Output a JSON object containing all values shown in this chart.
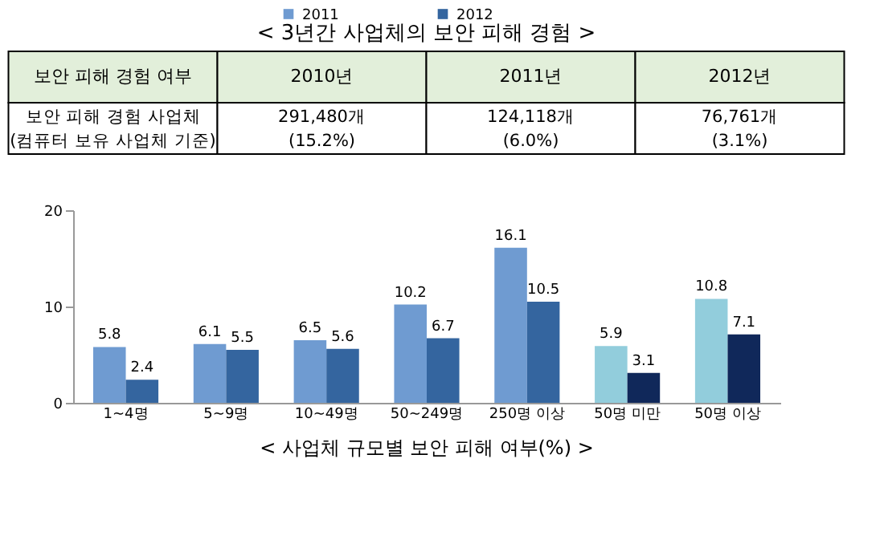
{
  "chart_data": [
    {
      "type": "other",
      "title": "< 3년간 사업체의 보안 피해 경험 >",
      "categories": [
        "보안 피해 경험 여부",
        "2010년",
        "2011년",
        "2012년"
      ],
      "cell_labels": [
        [
          "보안 피해 경험 사업체\n(컴퓨터 보유 사업체 기준)",
          "291,480개\n(15.2%)",
          "124,118개\n(6.0%)",
          "76,761개\n(3.1%)"
        ]
      ]
    },
    {
      "type": "bar",
      "title": "< 사업체 규모별 보안 피해 여부(%) >",
      "categories": [
        "1~4명",
        "5~9명",
        "10~49명",
        "50~249명",
        "250명 이상",
        "50명 미만",
        "50명 이상"
      ],
      "series": [
        {
          "name": "2011",
          "color": "#6f9bd1",
          "colors": [
            "#6f9bd1",
            "#6f9bd1",
            "#6f9bd1",
            "#6f9bd1",
            "#6f9bd1",
            "#92cddc",
            "#92cddc"
          ],
          "values": [
            5.8,
            6.1,
            6.5,
            10.2,
            16.1,
            5.9,
            10.8
          ]
        },
        {
          "name": "2012",
          "color": "#34659f",
          "colors": [
            "#34659f",
            "#34659f",
            "#34659f",
            "#34659f",
            "#34659f",
            "#10285a",
            "#10285a"
          ],
          "values": [
            2.4,
            5.5,
            5.6,
            6.7,
            10.5,
            3.1,
            7.1
          ]
        }
      ],
      "ylim": [
        0,
        20
      ],
      "yticks": [
        0,
        10,
        20
      ],
      "data_labels": true,
      "grid": false,
      "legend": "top"
    }
  ]
}
